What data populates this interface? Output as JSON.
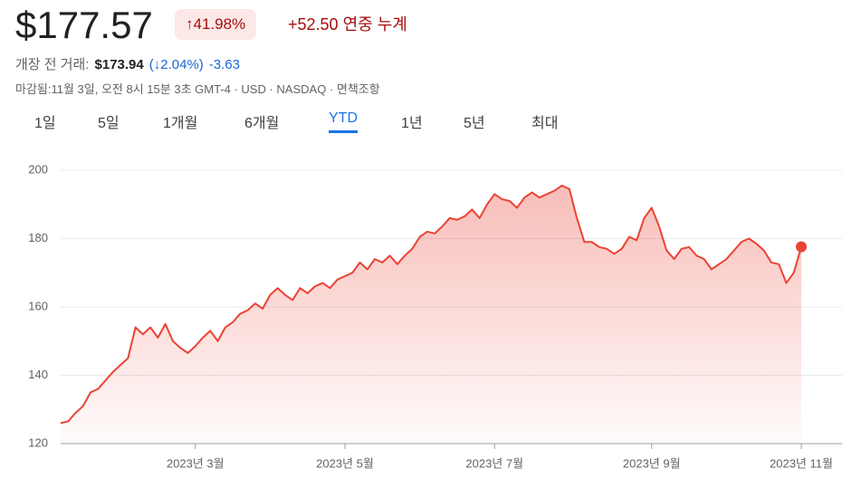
{
  "header": {
    "price": "$177.57",
    "change_percent": "↑41.98%",
    "change": "+52.50",
    "change_period": "연중 누계",
    "premarket_label": "개장 전 거래:",
    "premarket_price": "$173.94",
    "premarket_change_percent": "(↓2.04%)",
    "premarket_change": "-3.63",
    "info": "마감됨:11월 3일, 오전 8시 15분 3초 GMT-4 · USD · NASDAQ · 면책조항"
  },
  "tabs": {
    "items": [
      "1일",
      "5일",
      "1개월",
      "6개월",
      "YTD",
      "1년",
      "5년",
      "최대"
    ],
    "active": 4
  },
  "chart_data": {
    "type": "area-line",
    "color": "#ea4335",
    "categories": [
      null,
      null,
      null,
      null,
      null,
      null,
      null,
      null,
      null,
      null,
      null,
      null,
      null,
      null,
      null,
      null,
      null,
      null,
      "2023년 3월",
      null,
      null,
      null,
      null,
      null,
      null,
      null,
      null,
      null,
      null,
      null,
      null,
      null,
      null,
      null,
      null,
      null,
      null,
      null,
      "2023년 5월",
      null,
      null,
      null,
      null,
      null,
      null,
      null,
      null,
      null,
      null,
      null,
      null,
      null,
      null,
      null,
      null,
      null,
      null,
      null,
      "2023년 7월",
      null,
      null,
      null,
      null,
      null,
      null,
      null,
      null,
      null,
      null,
      null,
      null,
      null,
      null,
      null,
      null,
      null,
      null,
      null,
      null,
      "2023년 9월",
      null,
      null,
      null,
      null,
      null,
      null,
      null,
      null,
      null,
      null,
      null,
      null,
      null,
      null,
      null,
      null,
      null,
      null,
      null,
      "2023년 11월"
    ],
    "values": [
      126,
      126.5,
      129,
      131,
      135,
      136,
      138.5,
      141,
      143,
      145,
      154,
      152,
      154,
      151,
      155,
      150,
      148,
      146.5,
      148.5,
      151,
      153,
      150,
      154,
      155.5,
      158,
      159,
      161,
      159.5,
      163.5,
      165.5,
      163.5,
      162,
      165.5,
      164,
      166,
      167,
      165.5,
      168,
      169,
      170,
      173,
      171,
      174,
      173,
      175,
      172.5,
      175,
      177,
      180.5,
      182,
      181.5,
      183.5,
      186,
      185.5,
      186.5,
      188.5,
      186,
      190,
      193,
      191.5,
      191,
      189,
      192,
      193.5,
      192,
      193,
      194,
      195.5,
      194.5,
      186,
      179,
      179,
      177.5,
      177,
      175.5,
      177,
      180.5,
      179.5,
      186,
      189,
      183.5,
      176.5,
      174,
      177,
      177.5,
      175,
      174,
      171,
      172.5,
      174,
      176.5,
      179,
      180,
      178.5,
      176.5,
      173,
      172.5,
      167,
      170,
      177.57
    ],
    "ylim": [
      120,
      200
    ],
    "yticks": [
      120,
      140,
      160,
      180,
      200
    ],
    "grid": true
  }
}
